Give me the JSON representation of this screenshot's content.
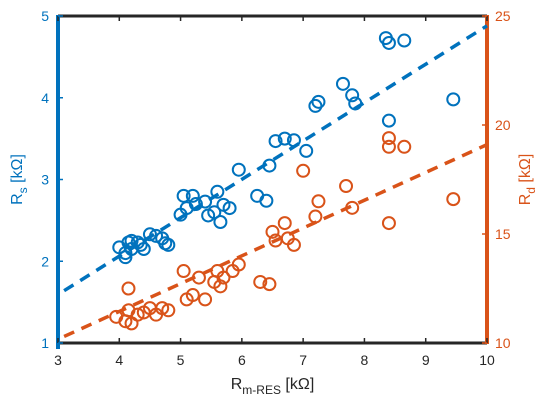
{
  "chart_data": {
    "type": "scatter",
    "xlabel": {
      "base": "R",
      "sub": "m-RES",
      "unit": " [kΩ]"
    },
    "ylabel_left": {
      "base": "R",
      "sub": "s",
      "unit": " [kΩ]"
    },
    "ylabel_right": {
      "base": "R",
      "sub": "d",
      "unit": " [kΩ]"
    },
    "xlim": [
      3,
      10
    ],
    "ylim_left": [
      1,
      5
    ],
    "ylim_right": [
      10,
      25
    ],
    "xticks": [
      3,
      4,
      5,
      6,
      7,
      8,
      9,
      10
    ],
    "yticks_left": [
      1,
      2,
      3,
      4,
      5
    ],
    "yticks_right": [
      10,
      15,
      20,
      25
    ],
    "grid": false,
    "colors": {
      "left": "#0072BD",
      "right": "#D95319",
      "axis_top_bottom": "#262626"
    },
    "series": [
      {
        "axis": "left",
        "marker": "open-circle",
        "points": [
          [
            4.0,
            2.17
          ],
          [
            4.1,
            2.05
          ],
          [
            4.1,
            2.1
          ],
          [
            4.15,
            2.23
          ],
          [
            4.2,
            2.25
          ],
          [
            4.2,
            2.15
          ],
          [
            4.3,
            2.23
          ],
          [
            4.35,
            2.2
          ],
          [
            4.4,
            2.15
          ],
          [
            4.5,
            2.33
          ],
          [
            4.6,
            2.31
          ],
          [
            4.7,
            2.28
          ],
          [
            4.75,
            2.22
          ],
          [
            4.8,
            2.2
          ],
          [
            5.0,
            2.57
          ],
          [
            5.05,
            2.8
          ],
          [
            5.1,
            2.65
          ],
          [
            5.2,
            2.8
          ],
          [
            5.25,
            2.7
          ],
          [
            5.4,
            2.73
          ],
          [
            5.45,
            2.56
          ],
          [
            5.55,
            2.6
          ],
          [
            5.6,
            2.85
          ],
          [
            5.65,
            2.48
          ],
          [
            5.7,
            2.69
          ],
          [
            5.8,
            2.65
          ],
          [
            5.95,
            3.12
          ],
          [
            6.25,
            2.8
          ],
          [
            6.4,
            2.74
          ],
          [
            6.45,
            3.17
          ],
          [
            6.55,
            3.47
          ],
          [
            6.7,
            3.5
          ],
          [
            6.85,
            3.48
          ],
          [
            7.05,
            3.35
          ],
          [
            7.2,
            3.9
          ],
          [
            7.25,
            3.95
          ],
          [
            7.65,
            4.17
          ],
          [
            7.8,
            4.03
          ],
          [
            7.85,
            3.93
          ],
          [
            8.35,
            4.73
          ],
          [
            8.4,
            4.67
          ],
          [
            8.4,
            3.72
          ],
          [
            8.65,
            4.7
          ],
          [
            9.45,
            3.98
          ]
        ],
        "fit": [
          [
            3.1,
            1.64
          ],
          [
            10,
            4.88
          ]
        ]
      },
      {
        "axis": "right",
        "marker": "open-circle",
        "points": [
          [
            3.95,
            11.2
          ],
          [
            4.1,
            11.0
          ],
          [
            4.15,
            12.5
          ],
          [
            4.15,
            11.5
          ],
          [
            4.2,
            10.9
          ],
          [
            4.3,
            11.3
          ],
          [
            4.4,
            11.4
          ],
          [
            4.5,
            11.6
          ],
          [
            4.6,
            11.3
          ],
          [
            4.7,
            11.6
          ],
          [
            4.8,
            11.5
          ],
          [
            5.05,
            13.3
          ],
          [
            5.1,
            12.0
          ],
          [
            5.2,
            12.2
          ],
          [
            5.3,
            13.0
          ],
          [
            5.4,
            12.0
          ],
          [
            5.55,
            12.8
          ],
          [
            5.6,
            13.3
          ],
          [
            5.65,
            12.6
          ],
          [
            5.7,
            13.0
          ],
          [
            5.85,
            13.3
          ],
          [
            5.95,
            13.6
          ],
          [
            6.3,
            12.8
          ],
          [
            6.45,
            12.7
          ],
          [
            6.5,
            15.1
          ],
          [
            6.55,
            14.7
          ],
          [
            6.7,
            15.5
          ],
          [
            6.75,
            14.8
          ],
          [
            6.85,
            14.5
          ],
          [
            7.0,
            17.9
          ],
          [
            7.2,
            15.8
          ],
          [
            7.25,
            16.5
          ],
          [
            7.7,
            17.2
          ],
          [
            7.8,
            16.2
          ],
          [
            8.4,
            19.4
          ],
          [
            8.4,
            19.0
          ],
          [
            8.4,
            15.5
          ],
          [
            8.65,
            19.0
          ],
          [
            9.45,
            16.6
          ]
        ],
        "fit": [
          [
            3.1,
            10.3
          ],
          [
            10,
            19.1
          ]
        ]
      }
    ]
  }
}
